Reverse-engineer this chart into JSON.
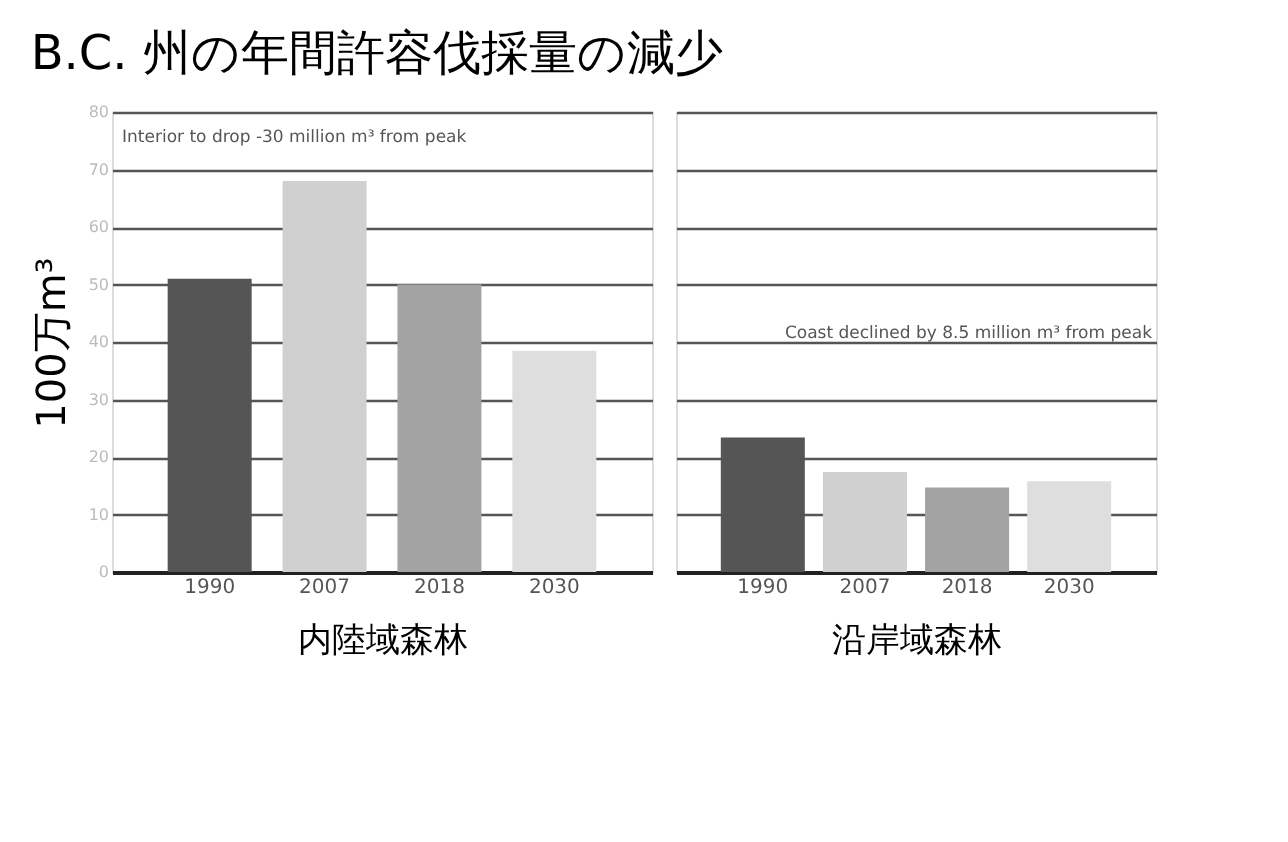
{
  "chart_data": [
    {
      "type": "bar",
      "title": "B.C. 州の年間許容伐採量の減少",
      "ylabel": "100万m³",
      "xlabel": "内陸域森林",
      "categories": [
        "1990",
        "2007",
        "2018",
        "2030"
      ],
      "values": [
        51,
        68,
        50,
        38.5
      ],
      "colors": [
        "#555555",
        "#d0d0d0",
        "#a3a3a3",
        "#dedede"
      ],
      "ylim": [
        0,
        80
      ],
      "yticks": [
        0,
        10,
        20,
        30,
        40,
        50,
        60,
        70,
        80
      ],
      "grid": "y",
      "annotations": [
        "Interior to drop -30 million m³ from peak"
      ]
    },
    {
      "type": "bar",
      "xlabel": "沿岸域森林",
      "categories": [
        "1990",
        "2007",
        "2018",
        "2030"
      ],
      "values": [
        23.4,
        17.4,
        14.7,
        15.8
      ],
      "colors": [
        "#555555",
        "#d0d0d0",
        "#a3a3a3",
        "#dedede"
      ],
      "ylim": [
        0,
        80
      ],
      "yticks": [
        0,
        10,
        20,
        30,
        40,
        50,
        60,
        70,
        80
      ],
      "grid": "y",
      "tick_labels": "x",
      "annotations": [
        "Coast declined by 8.5 million m³ from peak"
      ]
    }
  ]
}
